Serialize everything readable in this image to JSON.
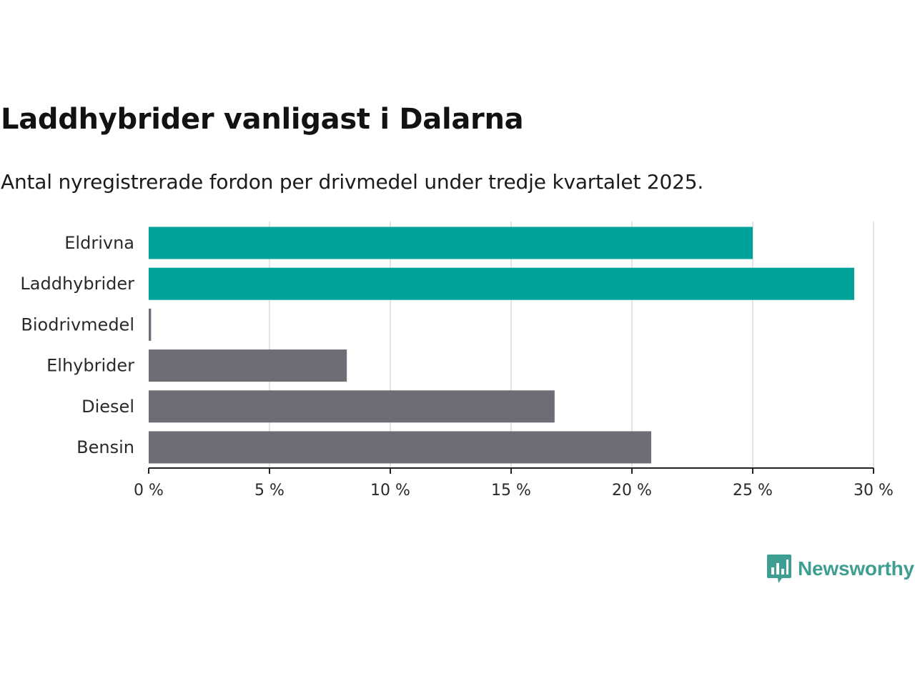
{
  "title": "Laddhybrider vanligast i Dalarna",
  "subtitle": "Antal nyregistrerade fordon per drivmedel under tredje kvartalet 2025.",
  "brand": {
    "name": "Newsworthy",
    "icon": "newsworthy-logo-icon",
    "color": "#3e9e91"
  },
  "colors": {
    "highlight": "#00a39a",
    "default": "#6e6d75",
    "grid": "#dcdcdc",
    "axis": "#222222",
    "text": "#222222"
  },
  "chart_data": {
    "type": "bar",
    "orientation": "horizontal",
    "categories": [
      "Eldrivna",
      "Laddhybrider",
      "Biodrivmedel",
      "Elhybrider",
      "Diesel",
      "Bensin"
    ],
    "values": [
      25.0,
      29.2,
      0.1,
      8.2,
      16.8,
      20.8
    ],
    "highlighted": [
      true,
      true,
      false,
      false,
      false,
      false
    ],
    "xlim": [
      0,
      30
    ],
    "xticks": [
      0,
      5,
      10,
      15,
      20,
      25,
      30
    ],
    "tick_labels": [
      "0 %",
      "5 %",
      "10 %",
      "15 %",
      "20 %",
      "25 %",
      "30 %"
    ],
    "unit": "%",
    "grid": true,
    "title": "Laddhybrider vanligast i Dalarna",
    "xlabel": "",
    "ylabel": ""
  }
}
